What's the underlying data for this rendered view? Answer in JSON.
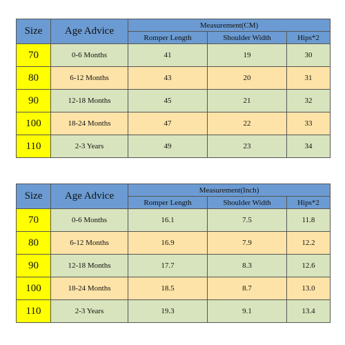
{
  "tables": [
    {
      "headers": {
        "size": "Size",
        "age": "Age Advice",
        "group": "Measurement(CM)",
        "columns": [
          "Romper Length",
          "Shoulder Width",
          "Hips*2"
        ]
      },
      "rows": [
        [
          "70",
          "0-6 Months",
          "41",
          "19",
          "30"
        ],
        [
          "80",
          "6-12 Months",
          "43",
          "20",
          "31"
        ],
        [
          "90",
          "12-18 Months",
          "45",
          "21",
          "32"
        ],
        [
          "100",
          "18-24 Months",
          "47",
          "22",
          "33"
        ],
        [
          "110",
          "2-3 Years",
          "49",
          "23",
          "34"
        ]
      ]
    },
    {
      "headers": {
        "size": "Size",
        "age": "Age Advice",
        "group": "Measurement(Inch)",
        "columns": [
          "Romper Length",
          "Shoulder Width",
          "Hips*2"
        ]
      },
      "rows": [
        [
          "70",
          "0-6 Months",
          "16.1",
          "7.5",
          "11.8"
        ],
        [
          "80",
          "6-12 Months",
          "16.9",
          "7.9",
          "12.2"
        ],
        [
          "90",
          "12-18 Months",
          "17.7",
          "8.3",
          "12.6"
        ],
        [
          "100",
          "18-24 Months",
          "18.5",
          "8.7",
          "13.0"
        ],
        [
          "110",
          "2-3 Years",
          "19.3",
          "9.1",
          "13.4"
        ]
      ]
    }
  ]
}
